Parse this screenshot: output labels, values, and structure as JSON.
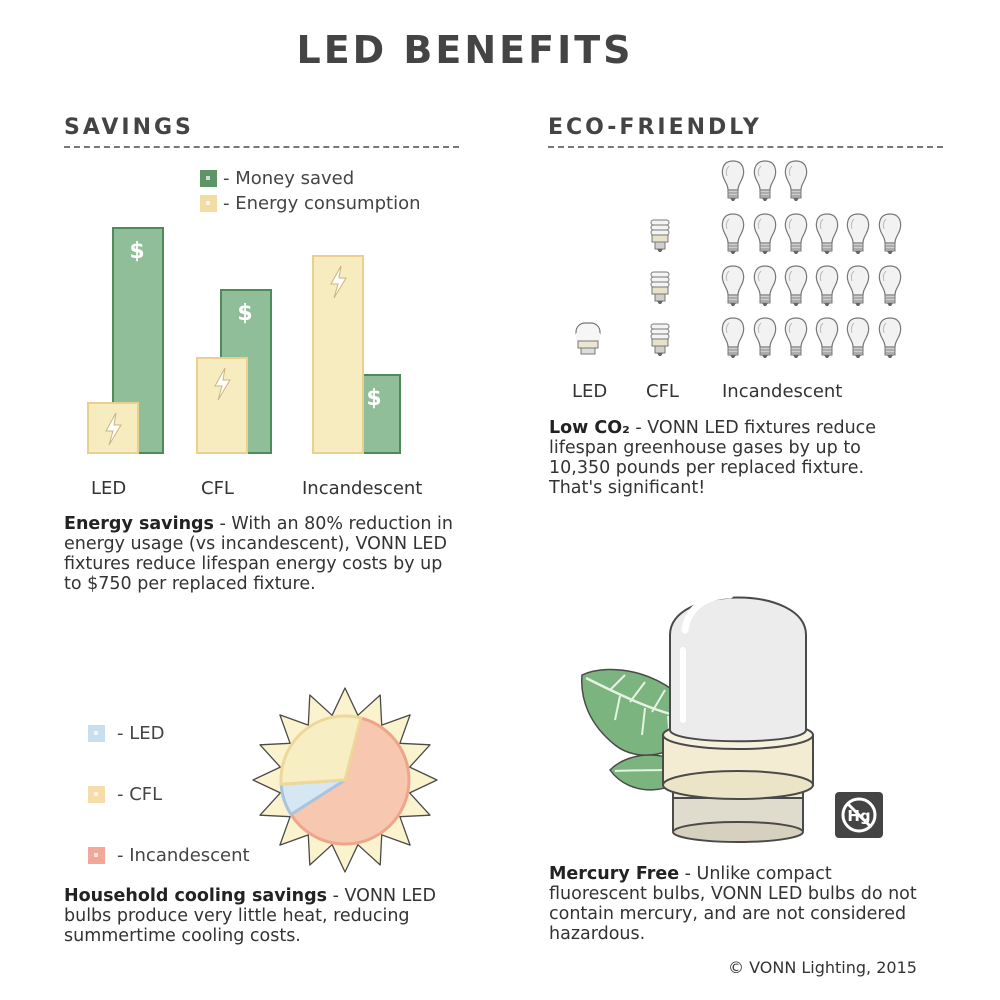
{
  "title": "LED BENEFITS",
  "savings": {
    "heading": "SAVINGS",
    "legend": [
      {
        "label": "- Money saved",
        "color": "#5f9466"
      },
      {
        "label": "- Energy consumption",
        "color": "#f3dba4"
      }
    ],
    "bar_labels": [
      "LED",
      "CFL",
      "Incandescent"
    ],
    "money_symbol": "$",
    "paragraph_bold": "Energy savings",
    "paragraph_text": " - With an 80% reduction in energy usage (vs incandescent), VONN LED fixtures reduce lifespan energy costs by up to $750 per replaced fixture."
  },
  "chart_data": {
    "type": "bar",
    "categories": [
      "LED",
      "CFL",
      "Incandescent"
    ],
    "series": [
      {
        "name": "Money saved",
        "values": [
          225,
          163,
          78
        ]
      },
      {
        "name": "Energy consumption",
        "values": [
          50,
          95,
          197
        ]
      }
    ],
    "colors": {
      "money": "#8fbe98",
      "energy": "#f6ecc0"
    }
  },
  "eco": {
    "heading": "ECO-FRIENDLY",
    "bulb_labels": [
      "LED",
      "CFL",
      "Incandescent"
    ],
    "paragraph_bold": "Low CO₂",
    "paragraph_text": " - VONN LED fixtures reduce lifespan greenhouse gases by up to 10,350 pounds per replaced fixture. That's significant!"
  },
  "cooling": {
    "legend": [
      {
        "label": "- LED",
        "color": "#c7ddf0"
      },
      {
        "label": "- CFL",
        "color": "#f6dca8"
      },
      {
        "label": "- Incandescent",
        "color": "#f2a898"
      }
    ],
    "pie": [
      {
        "name": "LED",
        "value": 8,
        "color": "#d6e6f3"
      },
      {
        "name": "CFL",
        "value": 30,
        "color": "#f8eec4"
      },
      {
        "name": "Incandescent",
        "value": 62,
        "color": "#f7c7b0"
      }
    ],
    "paragraph_bold": "Household cooling savings",
    "paragraph_text": " - VONN LED bulbs produce very little heat, reducing summertime cooling costs."
  },
  "mercury": {
    "badge": "Hg",
    "paragraph_bold": "Mercury Free",
    "paragraph_text": " - Unlike compact fluorescent bulbs, VONN LED bulbs do not contain mercury, and are not considered hazardous."
  },
  "footer": "© VONN Lighting, 2015"
}
